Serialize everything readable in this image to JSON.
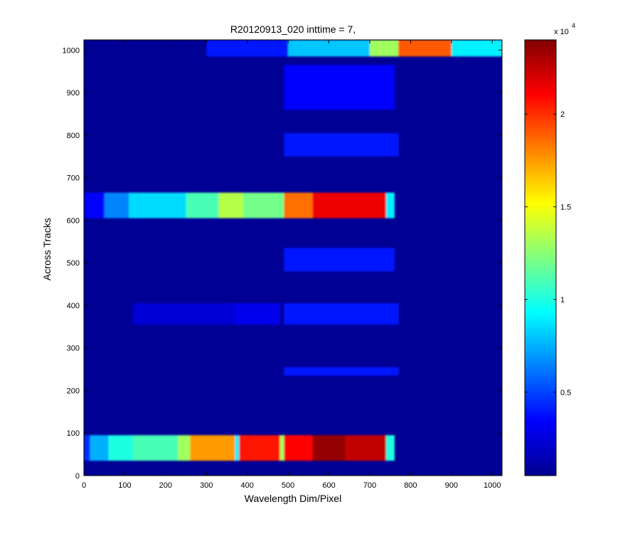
{
  "chart_data": {
    "type": "heatmap",
    "title": "R20120913_020 inttime = 7,",
    "xlabel": "Wavelength Dim/Pixel",
    "ylabel": "Across Tracks",
    "xlim": [
      0,
      1024
    ],
    "ylim": [
      0,
      1024
    ],
    "x_ticks": [
      0,
      100,
      200,
      300,
      400,
      500,
      600,
      700,
      800,
      900,
      1000
    ],
    "y_ticks": [
      0,
      100,
      200,
      300,
      400,
      500,
      600,
      700,
      800,
      900,
      1000
    ],
    "colorbar": {
      "colormap": "jet",
      "range": [
        0.05,
        2.4
      ],
      "ticks": [
        0.5,
        1,
        1.5,
        2
      ],
      "tick_labels": [
        "0.5",
        "1",
        "1.5",
        "2"
      ],
      "multiplier": "x 10",
      "exponent": "4"
    },
    "background_value": 0.1,
    "bands": [
      {
        "y_range": [
          35,
          95
        ],
        "segments": [
          {
            "x": [
              0,
              15
            ],
            "value": 0.45
          },
          {
            "x": [
              15,
              60
            ],
            "value": 0.75
          },
          {
            "x": [
              60,
              120
            ],
            "value": 1.0
          },
          {
            "x": [
              120,
              230
            ],
            "value": 1.1
          },
          {
            "x": [
              230,
              260
            ],
            "value": 1.3
          },
          {
            "x": [
              260,
              370
            ],
            "value": 1.75
          },
          {
            "x": [
              370,
              380
            ],
            "value": 0.9
          },
          {
            "x": [
              380,
              480
            ],
            "value": 2.05
          },
          {
            "x": [
              480,
              490
            ],
            "value": 1.3
          },
          {
            "x": [
              490,
              560
            ],
            "value": 2.1
          },
          {
            "x": [
              560,
              640
            ],
            "value": 2.35
          },
          {
            "x": [
              640,
              740
            ],
            "value": 2.25
          },
          {
            "x": [
              740,
              760
            ],
            "value": 1.0
          }
        ]
      },
      {
        "y_range": [
          235,
          255
        ],
        "segments": [
          {
            "x": [
              490,
              770
            ],
            "value": 0.4
          }
        ]
      },
      {
        "y_range": [
          355,
          405
        ],
        "segments": [
          {
            "x": [
              120,
              370
            ],
            "value": 0.25
          },
          {
            "x": [
              370,
              480
            ],
            "value": 0.3
          },
          {
            "x": [
              490,
              770
            ],
            "value": 0.4
          }
        ]
      },
      {
        "y_range": [
          480,
          535
        ],
        "segments": [
          {
            "x": [
              490,
              760
            ],
            "value": 0.4
          }
        ]
      },
      {
        "y_range": [
          605,
          665
        ],
        "segments": [
          {
            "x": [
              0,
              50
            ],
            "value": 0.35
          },
          {
            "x": [
              50,
              110
            ],
            "value": 0.65
          },
          {
            "x": [
              110,
              250
            ],
            "value": 0.85
          },
          {
            "x": [
              250,
              330
            ],
            "value": 1.1
          },
          {
            "x": [
              330,
              390
            ],
            "value": 1.35
          },
          {
            "x": [
              390,
              490
            ],
            "value": 1.2
          },
          {
            "x": [
              490,
              560
            ],
            "value": 1.85
          },
          {
            "x": [
              560,
              740
            ],
            "value": 2.15
          },
          {
            "x": [
              740,
              760
            ],
            "value": 0.9
          }
        ]
      },
      {
        "y_range": [
          750,
          805
        ],
        "segments": [
          {
            "x": [
              490,
              770
            ],
            "value": 0.4
          }
        ]
      },
      {
        "y_range": [
          860,
          965
        ],
        "segments": [
          {
            "x": [
              490,
              760
            ],
            "value": 0.35
          }
        ]
      },
      {
        "y_range": [
          985,
          1024
        ],
        "segments": [
          {
            "x": [
              300,
              500
            ],
            "value": 0.4
          },
          {
            "x": [
              500,
              700
            ],
            "value": 0.8
          },
          {
            "x": [
              700,
              770
            ],
            "value": 1.3
          },
          {
            "x": [
              770,
              900
            ],
            "value": 1.9
          },
          {
            "x": [
              900,
              1024
            ],
            "value": 0.9
          }
        ]
      }
    ]
  }
}
